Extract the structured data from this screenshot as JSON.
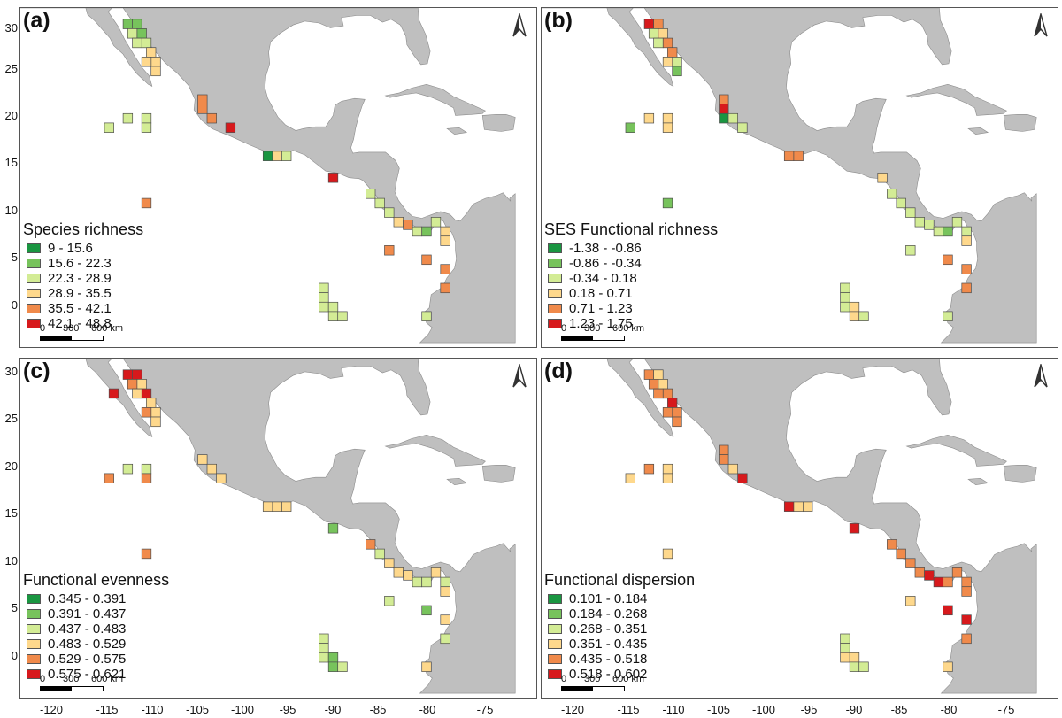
{
  "colors": {
    "land": "#bfbfbf",
    "ramp": [
      "#1a9641",
      "#77c35c",
      "#d3ec95",
      "#fed88c",
      "#f08a4b",
      "#d7191c"
    ]
  },
  "axes": {
    "y_ticks": [
      "30",
      "25",
      "20",
      "15",
      "10",
      "5",
      "0"
    ],
    "x_ticks": [
      "-120",
      "-115",
      "-110",
      "-105",
      "-100",
      "-95",
      "-90",
      "-85",
      "-80",
      "-75"
    ]
  },
  "scalebar": {
    "l0": "0",
    "l1": "300",
    "l2": "600 km"
  },
  "north_icon": "north-arrow-icon",
  "panels": [
    {
      "letter": "(a)",
      "legend_title": "Species richness",
      "classes": [
        "9 - 15.6",
        "15.6 - 22.3",
        "22.3 - 28.9",
        "28.9 - 35.5",
        "35.5 - 42.1",
        "42.1 - 48.8"
      ],
      "cells": [
        [
          -112.5,
          29.5,
          1
        ],
        [
          -111.5,
          29.5,
          1
        ],
        [
          -112,
          28.5,
          2
        ],
        [
          -111,
          28.5,
          1
        ],
        [
          -110.5,
          27.5,
          2
        ],
        [
          -111.5,
          27.5,
          2
        ],
        [
          -110,
          26.5,
          3
        ],
        [
          -109.5,
          25.5,
          3
        ],
        [
          -110.5,
          25.5,
          3
        ],
        [
          -109.5,
          24.5,
          3
        ],
        [
          -104.5,
          21.5,
          4
        ],
        [
          -104.5,
          20.5,
          4
        ],
        [
          -103.5,
          19.5,
          4
        ],
        [
          -101.5,
          18.5,
          5
        ],
        [
          -114.5,
          18.5,
          2
        ],
        [
          -112.5,
          19.5,
          2
        ],
        [
          -110.5,
          19.5,
          2
        ],
        [
          -110.5,
          18.5,
          2
        ],
        [
          -97.5,
          15.5,
          0
        ],
        [
          -96.5,
          15.5,
          3
        ],
        [
          -95.5,
          15.5,
          2
        ],
        [
          -90.5,
          13.2,
          5
        ],
        [
          -110.5,
          10.5,
          4
        ],
        [
          -86.5,
          11.5,
          2
        ],
        [
          -85.5,
          10.5,
          2
        ],
        [
          -84.5,
          9.5,
          2
        ],
        [
          -83.5,
          8.5,
          3
        ],
        [
          -82.5,
          8.2,
          4
        ],
        [
          -81.5,
          7.5,
          2
        ],
        [
          -80.5,
          7.5,
          1
        ],
        [
          -79.5,
          8.5,
          2
        ],
        [
          -78.5,
          7.5,
          3
        ],
        [
          -78.5,
          6.5,
          3
        ],
        [
          -84.5,
          5.5,
          4
        ],
        [
          -80.5,
          4.5,
          4
        ],
        [
          -78.5,
          3.5,
          4
        ],
        [
          -78.5,
          1.5,
          4
        ],
        [
          -91.5,
          1.5,
          2
        ],
        [
          -91.5,
          0.5,
          2
        ],
        [
          -91.5,
          -0.5,
          2
        ],
        [
          -90.5,
          -0.5,
          2
        ],
        [
          -90.5,
          -1.5,
          2
        ],
        [
          -89.5,
          -1.5,
          2
        ],
        [
          -80.5,
          -1.5,
          2
        ]
      ]
    },
    {
      "letter": "(b)",
      "legend_title": "SES Functional richness",
      "classes": [
        "-1.38 - -0.86",
        "-0.86 - -0.34",
        "-0.34 - 0.18",
        "0.18 - 0.71",
        "0.71 - 1.23",
        "1.23 - 1.75"
      ],
      "cells": [
        [
          -112.5,
          29.5,
          5
        ],
        [
          -111.5,
          29.5,
          4
        ],
        [
          -112,
          28.5,
          2
        ],
        [
          -111,
          28.5,
          3
        ],
        [
          -110.5,
          27.5,
          4
        ],
        [
          -111.5,
          27.5,
          2
        ],
        [
          -110,
          26.5,
          4
        ],
        [
          -109.5,
          25.5,
          2
        ],
        [
          -110.5,
          25.5,
          3
        ],
        [
          -109.5,
          24.5,
          1
        ],
        [
          -104.5,
          21.5,
          4
        ],
        [
          -104.5,
          20.5,
          5
        ],
        [
          -104.5,
          19.5,
          0
        ],
        [
          -103.5,
          19.5,
          2
        ],
        [
          -102.5,
          18.5,
          2
        ],
        [
          -114.5,
          18.5,
          1
        ],
        [
          -112.5,
          19.5,
          3
        ],
        [
          -110.5,
          19.5,
          3
        ],
        [
          -110.5,
          18.5,
          3
        ],
        [
          -97.5,
          15.5,
          4
        ],
        [
          -96.5,
          15.5,
          4
        ],
        [
          -87.5,
          13.2,
          3
        ],
        [
          -110.5,
          10.5,
          1
        ],
        [
          -86.5,
          11.5,
          2
        ],
        [
          -85.5,
          10.5,
          2
        ],
        [
          -84.5,
          9.5,
          2
        ],
        [
          -83.5,
          8.5,
          2
        ],
        [
          -82.5,
          8.2,
          2
        ],
        [
          -81.5,
          7.5,
          2
        ],
        [
          -80.5,
          7.5,
          1
        ],
        [
          -79.5,
          8.5,
          2
        ],
        [
          -78.5,
          7.5,
          2
        ],
        [
          -78.5,
          6.5,
          3
        ],
        [
          -84.5,
          5.5,
          2
        ],
        [
          -80.5,
          4.5,
          4
        ],
        [
          -78.5,
          3.5,
          4
        ],
        [
          -78.5,
          1.5,
          4
        ],
        [
          -91.5,
          1.5,
          2
        ],
        [
          -91.5,
          0.5,
          2
        ],
        [
          -91.5,
          -0.5,
          2
        ],
        [
          -90.5,
          -0.5,
          3
        ],
        [
          -90.5,
          -1.5,
          3
        ],
        [
          -89.5,
          -1.5,
          2
        ],
        [
          -80.5,
          -1.5,
          2
        ]
      ]
    },
    {
      "letter": "(c)",
      "legend_title": "Functional evenness",
      "classes": [
        "0.345 - 0.391",
        "0.391 - 0.437",
        "0.437 - 0.483",
        "0.483 - 0.529",
        "0.529 - 0.575",
        "0.575 - 0.621"
      ],
      "cells": [
        [
          -112.5,
          29.5,
          5
        ],
        [
          -111.5,
          29.5,
          5
        ],
        [
          -114,
          27.5,
          5
        ],
        [
          -112,
          28.5,
          4
        ],
        [
          -111,
          28.5,
          3
        ],
        [
          -110.5,
          27.5,
          5
        ],
        [
          -111.5,
          27.5,
          3
        ],
        [
          -110,
          26.5,
          3
        ],
        [
          -109.5,
          25.5,
          3
        ],
        [
          -110.5,
          25.5,
          4
        ],
        [
          -109.5,
          24.5,
          3
        ],
        [
          -104.5,
          20.5,
          3
        ],
        [
          -103.5,
          19.5,
          3
        ],
        [
          -102.5,
          18.5,
          3
        ],
        [
          -114.5,
          18.5,
          4
        ],
        [
          -112.5,
          19.5,
          2
        ],
        [
          -110.5,
          19.5,
          2
        ],
        [
          -110.5,
          18.5,
          4
        ],
        [
          -97.5,
          15.5,
          3
        ],
        [
          -96.5,
          15.5,
          3
        ],
        [
          -95.5,
          15.5,
          3
        ],
        [
          -90.5,
          13.2,
          1
        ],
        [
          -110.5,
          10.5,
          4
        ],
        [
          -86.5,
          11.5,
          4
        ],
        [
          -85.5,
          10.5,
          2
        ],
        [
          -84.5,
          9.5,
          3
        ],
        [
          -83.5,
          8.5,
          3
        ],
        [
          -82.5,
          8.2,
          3
        ],
        [
          -81.5,
          7.5,
          2
        ],
        [
          -80.5,
          7.5,
          2
        ],
        [
          -79.5,
          8.5,
          3
        ],
        [
          -78.5,
          7.5,
          2
        ],
        [
          -78.5,
          6.5,
          3
        ],
        [
          -84.5,
          5.5,
          2
        ],
        [
          -80.5,
          4.5,
          1
        ],
        [
          -78.5,
          3.5,
          3
        ],
        [
          -78.5,
          1.5,
          2
        ],
        [
          -91.5,
          1.5,
          2
        ],
        [
          -91.5,
          0.5,
          2
        ],
        [
          -91.5,
          -0.5,
          2
        ],
        [
          -90.5,
          -0.5,
          1
        ],
        [
          -90.5,
          -1.5,
          1
        ],
        [
          -89.5,
          -1.5,
          2
        ],
        [
          -80.5,
          -1.5,
          3
        ]
      ]
    },
    {
      "letter": "(d)",
      "legend_title": "Functional dispersion",
      "classes": [
        "0.101 - 0.184",
        "0.184 - 0.268",
        "0.268 - 0.351",
        "0.351 - 0.435",
        "0.435 - 0.518",
        "0.518 - 0.602"
      ],
      "cells": [
        [
          -112.5,
          29.5,
          4
        ],
        [
          -111.5,
          29.5,
          3
        ],
        [
          -112,
          28.5,
          4
        ],
        [
          -111,
          28.5,
          3
        ],
        [
          -110.5,
          27.5,
          4
        ],
        [
          -111.5,
          27.5,
          4
        ],
        [
          -110,
          26.5,
          5
        ],
        [
          -109.5,
          25.5,
          4
        ],
        [
          -110.5,
          25.5,
          4
        ],
        [
          -109.5,
          24.5,
          4
        ],
        [
          -104.5,
          21.5,
          4
        ],
        [
          -104.5,
          20.5,
          4
        ],
        [
          -103.5,
          19.5,
          3
        ],
        [
          -102.5,
          18.5,
          5
        ],
        [
          -114.5,
          18.5,
          3
        ],
        [
          -112.5,
          19.5,
          4
        ],
        [
          -110.5,
          19.5,
          3
        ],
        [
          -110.5,
          18.5,
          3
        ],
        [
          -97.5,
          15.5,
          5
        ],
        [
          -96.5,
          15.5,
          3
        ],
        [
          -95.5,
          15.5,
          3
        ],
        [
          -90.5,
          13.2,
          5
        ],
        [
          -110.5,
          10.5,
          3
        ],
        [
          -86.5,
          11.5,
          4
        ],
        [
          -85.5,
          10.5,
          4
        ],
        [
          -84.5,
          9.5,
          4
        ],
        [
          -83.5,
          8.5,
          4
        ],
        [
          -82.5,
          8.2,
          5
        ],
        [
          -81.5,
          7.5,
          5
        ],
        [
          -80.5,
          7.5,
          4
        ],
        [
          -79.5,
          8.5,
          4
        ],
        [
          -78.5,
          7.5,
          4
        ],
        [
          -78.5,
          6.5,
          4
        ],
        [
          -84.5,
          5.5,
          3
        ],
        [
          -80.5,
          4.5,
          5
        ],
        [
          -78.5,
          3.5,
          5
        ],
        [
          -78.5,
          1.5,
          4
        ],
        [
          -91.5,
          1.5,
          2
        ],
        [
          -91.5,
          0.5,
          2
        ],
        [
          -91.5,
          -0.5,
          3
        ],
        [
          -90.5,
          -0.5,
          3
        ],
        [
          -90.5,
          -1.5,
          2
        ],
        [
          -89.5,
          -1.5,
          2
        ],
        [
          -80.5,
          -1.5,
          3
        ]
      ]
    }
  ]
}
